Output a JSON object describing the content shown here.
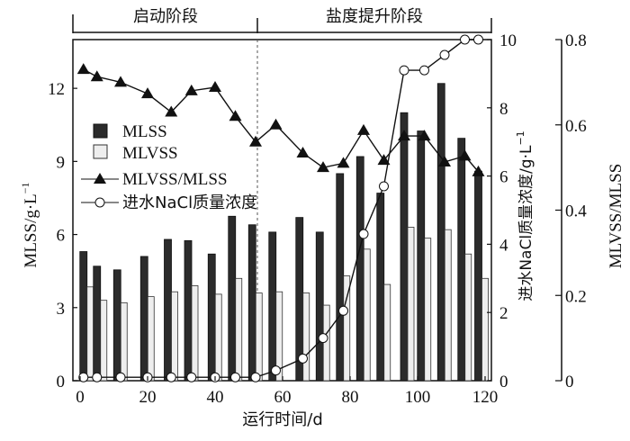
{
  "chart_data": {
    "type": "bar",
    "title": "",
    "phases": [
      {
        "label": "启动阶段",
        "range": [
          -5,
          52
        ]
      },
      {
        "label": "盐度提升阶段",
        "range": [
          52,
          122
        ]
      }
    ],
    "xlabel": "运行时间/d",
    "ylabel_left": "MLSS/g·L",
    "ylabel_left_sup": "−1",
    "ylabel_mid": "进水NaCl质量浓度/g·L",
    "ylabel_mid_sup": "−1",
    "ylabel_right": "MLVSS/MLSS",
    "xlim": [
      -2,
      122
    ],
    "ylim_left": [
      0,
      14
    ],
    "ylim_mid": [
      0,
      10
    ],
    "ylim_right": [
      0,
      0.8
    ],
    "xticks": [
      "0",
      "20",
      "40",
      "60",
      "80",
      "100",
      "120"
    ],
    "xtick_values": [
      0,
      20,
      40,
      60,
      80,
      100,
      120
    ],
    "yticks_left": [
      "0",
      "3",
      "6",
      "9",
      "12"
    ],
    "ytick_values_left": [
      0,
      3,
      6,
      9,
      12
    ],
    "yticks_mid": [
      "0",
      "2",
      "4",
      "6",
      "8",
      "10"
    ],
    "ytick_values_mid": [
      0,
      2,
      4,
      6,
      8,
      10
    ],
    "yticks_right": [
      "0",
      "0.2",
      "0.4",
      "0.6",
      "0.8"
    ],
    "ytick_values_right": [
      0,
      0.2,
      0.4,
      0.6,
      0.8
    ],
    "legend_position": "center-left",
    "series": [
      {
        "name": "MLSS",
        "kind": "bar",
        "axis": "left",
        "color": "#2b2b2b",
        "x": [
          1,
          5,
          11,
          19,
          26,
          32,
          39,
          45,
          51,
          57,
          65,
          71,
          77,
          83,
          89,
          96,
          101,
          107,
          113,
          118
        ],
        "values": [
          5.3,
          4.7,
          4.55,
          5.1,
          5.8,
          5.75,
          5.2,
          6.75,
          6.4,
          6.1,
          6.7,
          6.1,
          8.5,
          9.2,
          7.7,
          11.0,
          10.25,
          12.2,
          9.95,
          8.6
        ]
      },
      {
        "name": "MLVSS",
        "kind": "bar",
        "axis": "left",
        "color": "#eeeeee",
        "x": [
          1,
          5,
          11,
          19,
          26,
          32,
          39,
          45,
          51,
          57,
          65,
          71,
          77,
          83,
          89,
          96,
          101,
          107,
          113,
          118
        ],
        "values": [
          3.85,
          3.3,
          3.2,
          3.45,
          3.65,
          3.9,
          3.55,
          4.2,
          3.6,
          3.65,
          3.6,
          3.1,
          4.3,
          5.4,
          3.95,
          6.3,
          5.85,
          6.2,
          5.2,
          4.2
        ]
      },
      {
        "name": "MLVSS/MLSS",
        "kind": "line",
        "marker": "triangle",
        "axis": "right",
        "color": "#111111",
        "x": [
          1,
          5,
          12,
          20,
          27,
          33,
          40,
          46,
          52,
          58,
          66,
          72,
          78,
          84,
          90,
          96,
          102,
          108,
          114,
          118
        ],
        "values": [
          0.73,
          0.713,
          0.7,
          0.673,
          0.63,
          0.68,
          0.688,
          0.62,
          0.56,
          0.6,
          0.534,
          0.5,
          0.51,
          0.587,
          0.517,
          0.574,
          0.574,
          0.513,
          0.527,
          0.49
        ]
      },
      {
        "name": "进水NaCl质量浓度",
        "kind": "line",
        "marker": "circle",
        "axis": "mid",
        "color": "#111111",
        "x": [
          1,
          5,
          12,
          20,
          27,
          33,
          40,
          46,
          52,
          58,
          66,
          72,
          78,
          84,
          90,
          96,
          102,
          108,
          114,
          118
        ],
        "values": [
          0.1,
          0.1,
          0.1,
          0.1,
          0.1,
          0.1,
          0.1,
          0.1,
          0.1,
          0.3,
          0.65,
          1.25,
          2.05,
          4.3,
          5.7,
          9.1,
          9.1,
          9.55,
          10.0,
          10.0
        ]
      }
    ]
  }
}
